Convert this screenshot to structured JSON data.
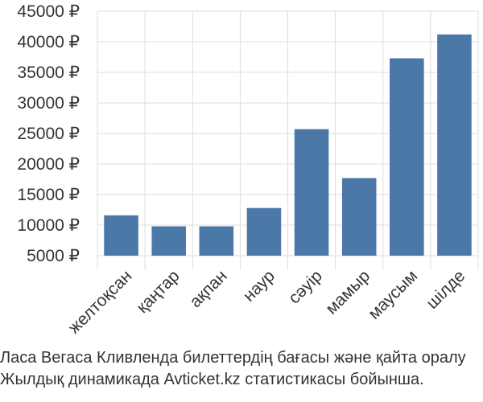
{
  "chart_data": {
    "type": "bar",
    "categories": [
      "желтоқсан",
      "қаңтар",
      "ақпан",
      "наур",
      "сәуір",
      "мамыр",
      "маусым",
      "шілде"
    ],
    "values": [
      11600,
      9800,
      9800,
      12800,
      25700,
      17700,
      37300,
      41200
    ],
    "ylim": [
      5000,
      45000
    ],
    "yticks": [
      5000,
      10000,
      15000,
      20000,
      25000,
      30000,
      35000,
      40000,
      45000
    ],
    "ytick_labels": [
      "5000 ₽",
      "10000 ₽",
      "15000 ₽",
      "20000 ₽",
      "25000 ₽",
      "30000 ₽",
      "35000 ₽",
      "40000 ₽",
      "45000 ₽"
    ],
    "grid": true,
    "bar_color": "#4c78a8",
    "grid_color": "#dddddd"
  },
  "caption": {
    "line1": "Ласа Вегаса Кливленда билеттердің бағасы және қайта оралу",
    "line2": "Жылдық динамикада Avticket.kz статистикасы бойынша."
  }
}
